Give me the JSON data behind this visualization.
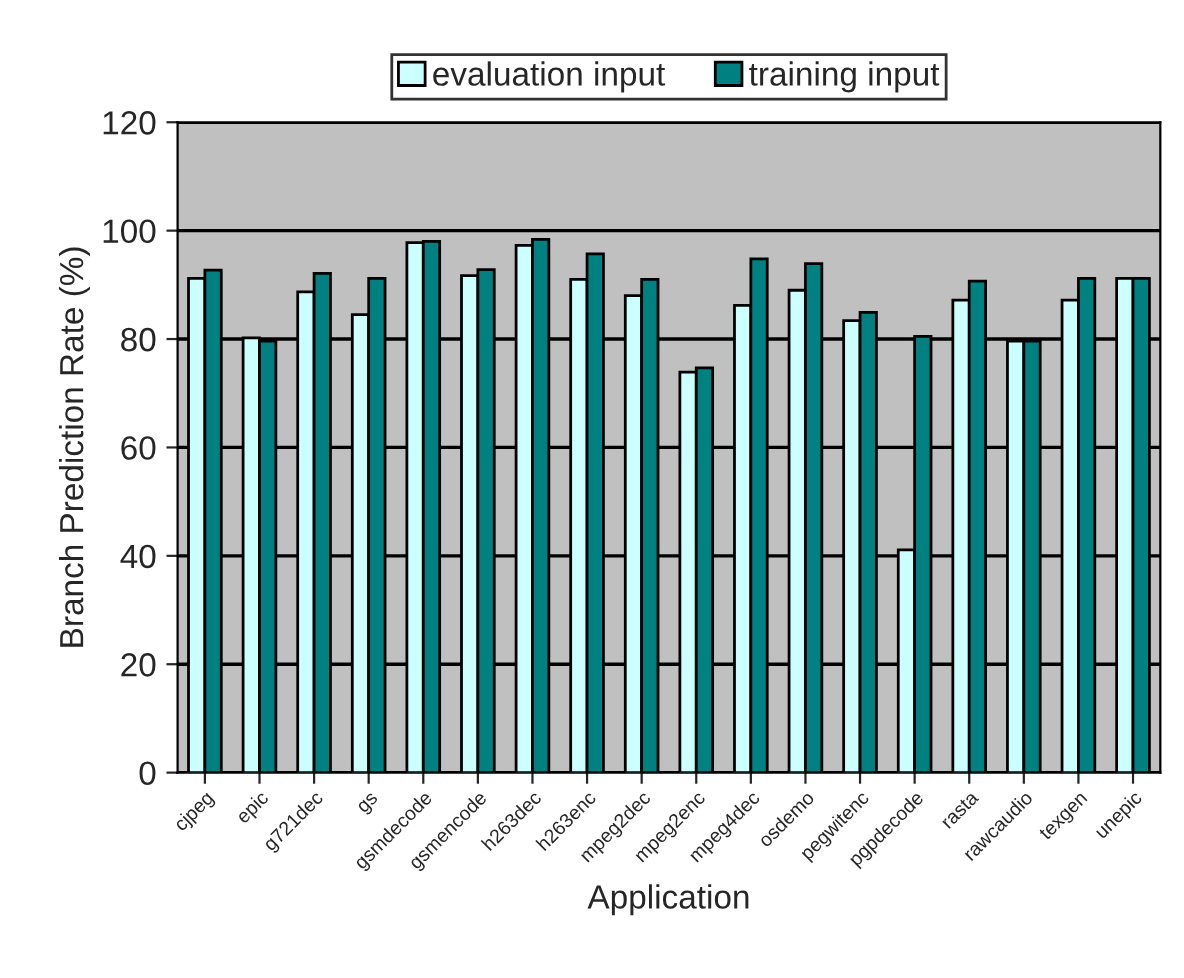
{
  "chart_data": {
    "type": "bar",
    "xlabel": "Application",
    "ylabel": "Branch Prediction Rate (%)",
    "categories": [
      "cjpeg",
      "epic",
      "g721dec",
      "gs",
      "gsmdecode",
      "gsmencode",
      "h263dec",
      "h263enc",
      "mpeg2dec",
      "mpeg2enc",
      "mpeg4dec",
      "osdemo",
      "pegwitenc",
      "pgpdecode",
      "rasta",
      "rawcaudio",
      "texgen",
      "unepic"
    ],
    "series": [
      {
        "name": "evaluation input",
        "color": "#ccffff",
        "values": [
          91.2,
          80.2,
          88.7,
          84.5,
          97.8,
          91.7,
          97.3,
          91,
          88,
          73.9,
          86.2,
          89,
          83.4,
          41.1,
          87.2,
          79.6,
          87.2,
          91.2
        ]
      },
      {
        "name": "training input",
        "color": "#008080",
        "values": [
          92.7,
          79.6,
          92.1,
          91.2,
          98,
          92.8,
          98.4,
          95.7,
          91,
          74.7,
          94.8,
          93.9,
          84.9,
          80.5,
          90.7,
          79.6,
          91.2,
          91.2
        ]
      }
    ],
    "ylim": [
      0,
      120
    ],
    "yticks": [
      0,
      20,
      40,
      60,
      80,
      100,
      120
    ],
    "grid": "y",
    "legend": "top"
  }
}
